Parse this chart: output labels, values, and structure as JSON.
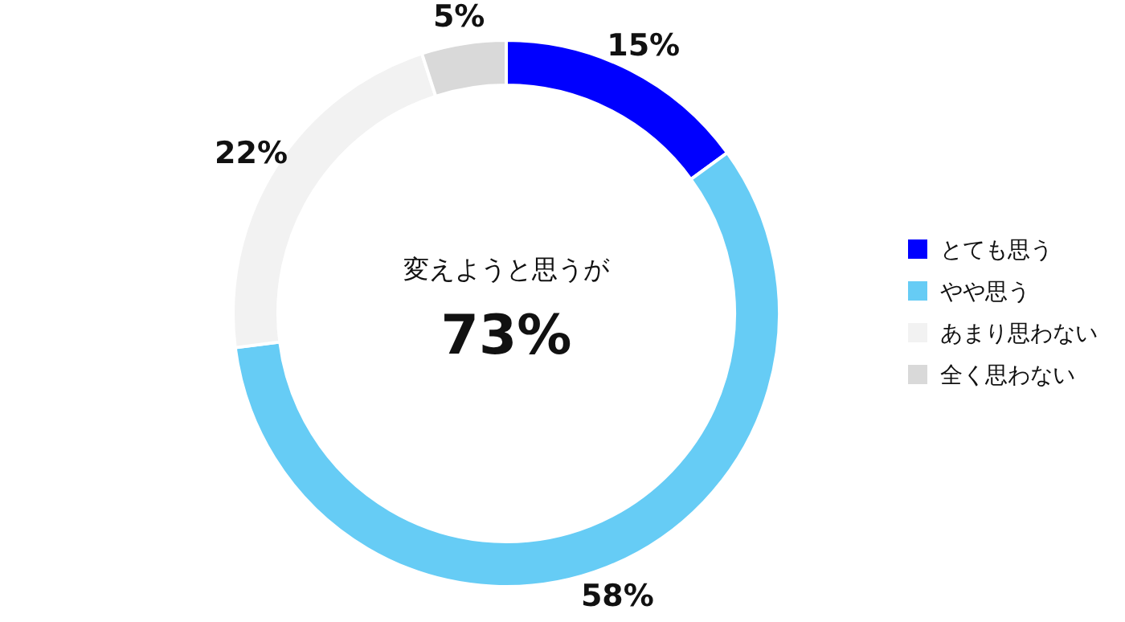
{
  "chart_data": {
    "type": "donut",
    "categories": [
      "とても思う",
      "やや思う",
      "あまり思わない",
      "全く思わない"
    ],
    "values": [
      15,
      58,
      22,
      5
    ],
    "colors": [
      "#0000ff",
      "#66ccf5",
      "#f2f2f2",
      "#d9d9d9"
    ],
    "value_labels": [
      "15%",
      "58%",
      "22%",
      "5%"
    ],
    "annotations": [
      "変えようと思うが",
      "73%"
    ],
    "legend": "right"
  }
}
